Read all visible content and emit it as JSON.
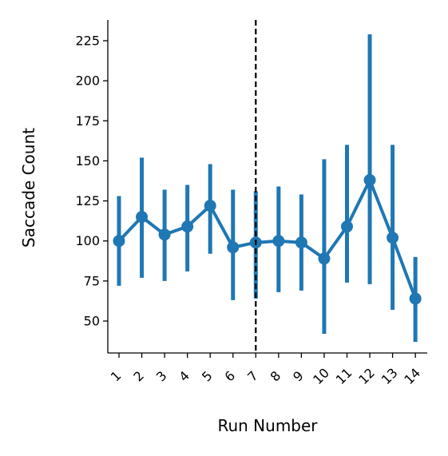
{
  "chart_data": {
    "type": "line",
    "title": "",
    "xlabel": "Run Number",
    "ylabel": "Saccade Count",
    "categories": [
      "1",
      "2",
      "3",
      "4",
      "5",
      "6",
      "7",
      "8",
      "9",
      "10",
      "11",
      "12",
      "13",
      "14"
    ],
    "values": [
      100,
      115,
      104,
      109,
      122,
      96,
      99,
      100,
      99,
      89,
      109,
      138,
      102,
      64
    ],
    "error_low": [
      72,
      77,
      75,
      81,
      92,
      63,
      64,
      68,
      69,
      42,
      74,
      73,
      57,
      37
    ],
    "error_high": [
      128,
      152,
      132,
      135,
      148,
      132,
      131,
      134,
      129,
      151,
      160,
      229,
      160,
      90
    ],
    "yticks": [
      50,
      75,
      100,
      125,
      150,
      175,
      200,
      225
    ],
    "ylim": [
      28,
      237
    ],
    "vline_at_category": "7",
    "grid": false,
    "legend": "none",
    "color": "#1f77b4",
    "vline_color": "#000000"
  }
}
